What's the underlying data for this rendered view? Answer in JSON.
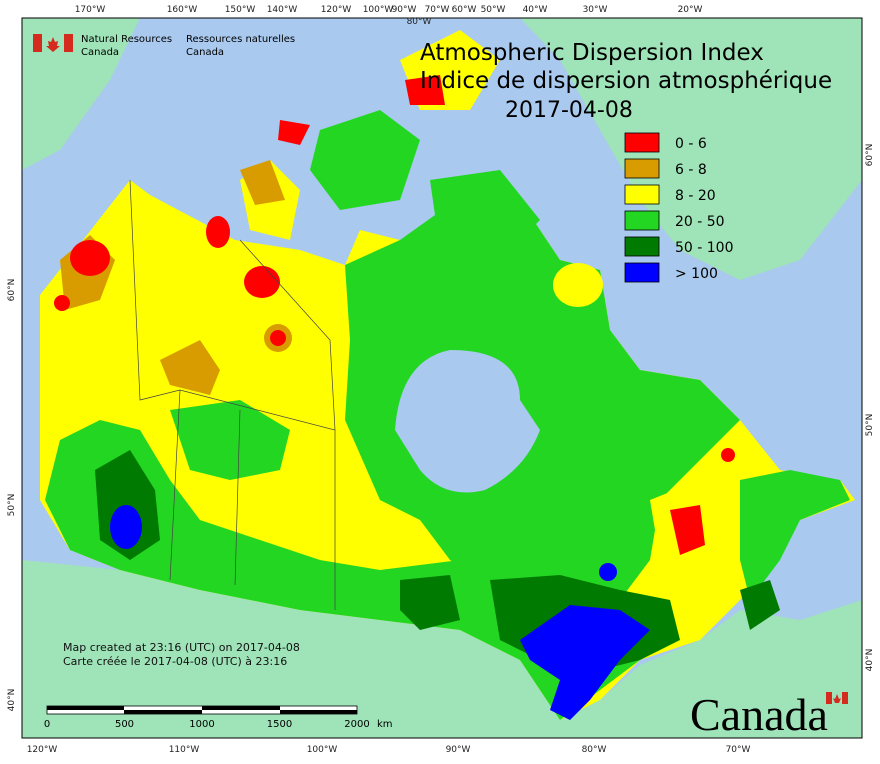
{
  "header": {
    "agency_en": "Natural Resources",
    "agency_en_2": "Canada",
    "agency_fr": "Ressources naturelles",
    "agency_fr_2": "Canada"
  },
  "title": {
    "en": "Atmospheric Dispersion Index",
    "fr": "Indice de dispersion atmosphérique",
    "date": "2017-04-08"
  },
  "legend": [
    {
      "label": "0 - 6",
      "color": "#ff0000"
    },
    {
      "label": "6 - 8",
      "color": "#d89c00"
    },
    {
      "label": "8 - 20",
      "color": "#ffff00"
    },
    {
      "label": "20 - 50",
      "color": "#22d622"
    },
    {
      "label": "50 - 100",
      "color": "#007a00"
    },
    {
      "label": "> 100",
      "color": "#0000ff"
    }
  ],
  "top_labels": [
    "170°W",
    "160°W",
    "150°W",
    "140°W",
    "120°W",
    "100°W",
    "90°W",
    "80°W",
    "70°W",
    "60°W",
    "50°W",
    "40°W",
    "30°W",
    "20°W"
  ],
  "bottom_labels": [
    "120°W",
    "110°W",
    "100°W",
    "90°W",
    "80°W",
    "70°W"
  ],
  "left_labels": [
    "60°N",
    "50°N",
    "40°N"
  ],
  "right_labels": [
    "60°N",
    "50°N",
    "40°N"
  ],
  "credits": [
    "Map created at 23:16 (UTC) on 2017-04-08",
    "Carte créée le 2017-04-08 (UTC) à 23:16"
  ],
  "scale": {
    "ticks": [
      0,
      500,
      1000,
      1500,
      2000
    ],
    "unit": "km"
  },
  "wordmark": "Canada"
}
